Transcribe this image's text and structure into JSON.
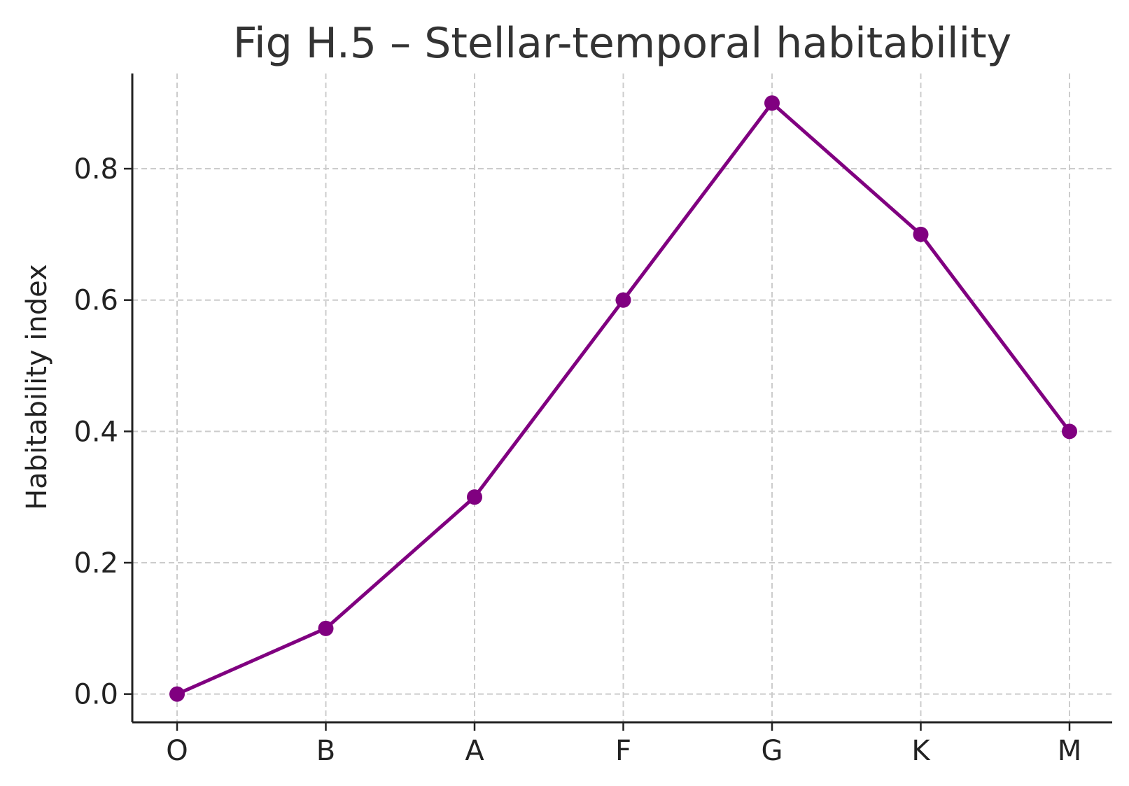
{
  "chart_data": {
    "type": "line",
    "title": "Fig H.5 – Stellar-temporal habitability",
    "xlabel": "",
    "ylabel": "Habitability index",
    "categories": [
      "O",
      "B",
      "A",
      "F",
      "G",
      "K",
      "M"
    ],
    "series": [
      {
        "values": [
          0.0,
          0.1,
          0.3,
          0.6,
          0.9,
          0.7,
          0.4
        ],
        "color": "#800080",
        "marker": "circle"
      }
    ],
    "ylim": [
      -0.043,
      0.945
    ],
    "yticks": [
      0.0,
      0.2,
      0.4,
      0.6,
      0.8
    ],
    "ytick_labels": [
      "0.0",
      "0.2",
      "0.4",
      "0.6",
      "0.8"
    ],
    "grid": true,
    "grid_style": "dashed",
    "legend": "none"
  }
}
